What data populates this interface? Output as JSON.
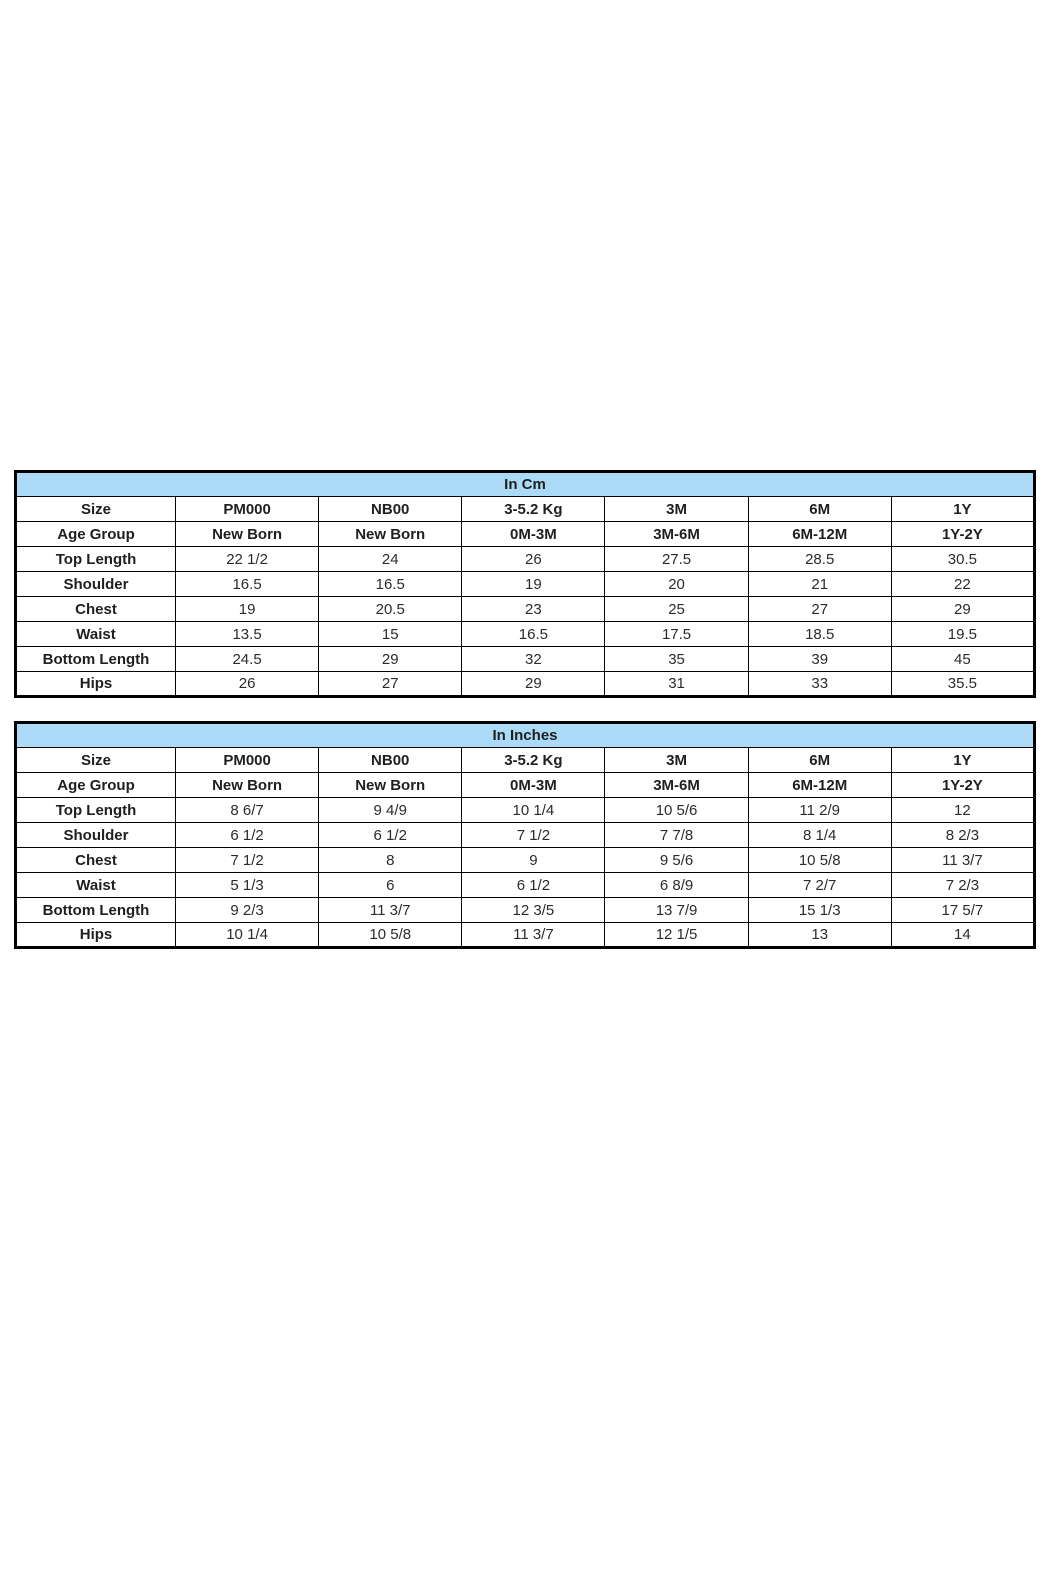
{
  "colors": {
    "title_fill": "#abdaf7",
    "border": "#000000",
    "text": "#1f1f1f",
    "page_background": "#ffffff"
  },
  "tables": [
    {
      "title": "In Cm",
      "header_rows": [
        {
          "label": "Size",
          "values": [
            "PM000",
            "NB00",
            "3-5.2 Kg",
            "3M",
            "6M",
            "1Y"
          ]
        },
        {
          "label": "Age Group",
          "values": [
            "New Born",
            "New Born",
            "0M-3M",
            "3M-6M",
            "6M-12M",
            "1Y-2Y"
          ]
        }
      ],
      "rows": [
        {
          "label": "Top Length",
          "values": [
            "22 1/2",
            "24",
            "26",
            "27.5",
            "28.5",
            "30.5"
          ]
        },
        {
          "label": "Shoulder",
          "values": [
            "16.5",
            "16.5",
            "19",
            "20",
            "21",
            "22"
          ]
        },
        {
          "label": "Chest",
          "values": [
            "19",
            "20.5",
            "23",
            "25",
            "27",
            "29"
          ]
        },
        {
          "label": "Waist",
          "values": [
            "13.5",
            "15",
            "16.5",
            "17.5",
            "18.5",
            "19.5"
          ]
        },
        {
          "label": "Bottom Length",
          "values": [
            "24.5",
            "29",
            "32",
            "35",
            "39",
            "45"
          ]
        },
        {
          "label": "Hips",
          "values": [
            "26",
            "27",
            "29",
            "31",
            "33",
            "35.5"
          ]
        }
      ]
    },
    {
      "title": "In Inches",
      "header_rows": [
        {
          "label": "Size",
          "values": [
            "PM000",
            "NB00",
            "3-5.2 Kg",
            "3M",
            "6M",
            "1Y"
          ]
        },
        {
          "label": "Age Group",
          "values": [
            "New Born",
            "New Born",
            "0M-3M",
            "3M-6M",
            "6M-12M",
            "1Y-2Y"
          ]
        }
      ],
      "rows": [
        {
          "label": "Top Length",
          "values": [
            "8 6/7",
            "9 4/9",
            "10 1/4",
            "10 5/6",
            "11 2/9",
            "12"
          ]
        },
        {
          "label": "Shoulder",
          "values": [
            "6 1/2",
            "6 1/2",
            "7 1/2",
            "7 7/8",
            "8 1/4",
            "8 2/3"
          ]
        },
        {
          "label": "Chest",
          "values": [
            "7 1/2",
            "8",
            "9",
            "9 5/6",
            "10 5/8",
            "11 3/7"
          ]
        },
        {
          "label": "Waist",
          "values": [
            "5 1/3",
            "6",
            "6 1/2",
            "6 8/9",
            "7 2/7",
            "7 2/3"
          ]
        },
        {
          "label": "Bottom Length",
          "values": [
            "9 2/3",
            "11 3/7",
            "12 3/5",
            "13 7/9",
            "15 1/3",
            "17 5/7"
          ]
        },
        {
          "label": "Hips",
          "values": [
            "10 1/4",
            "10 5/8",
            "11 3/7",
            "12 1/5",
            "13",
            "14"
          ]
        }
      ]
    }
  ]
}
